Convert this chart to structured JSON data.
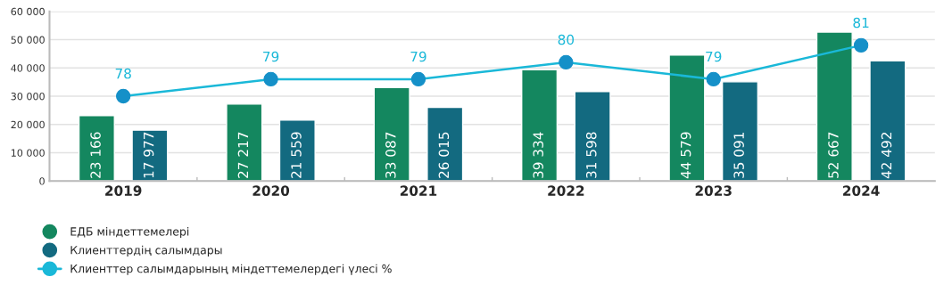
{
  "chart_data": {
    "type": "bar",
    "categories": [
      "2019",
      "2020",
      "2021",
      "2022",
      "2023",
      "2024"
    ],
    "series": [
      {
        "name": "ЕДБ міндеттемелері",
        "color": "#14875f",
        "values": [
          23166,
          27217,
          33087,
          39334,
          44579,
          52667
        ],
        "value_labels": [
          "23 166",
          "27 217",
          "33 087",
          "39 334",
          "44 579",
          "52 667"
        ]
      },
      {
        "name": "Клиенттердің салымдары",
        "color": "#136a80",
        "values": [
          17977,
          21559,
          26015,
          31598,
          35091,
          42492
        ],
        "value_labels": [
          "17 977",
          "21 559",
          "26 015",
          "31 598",
          "35 091",
          "42 492"
        ]
      },
      {
        "name": "Клиенттер салымдарының міндеттемелердегі үлесі %",
        "type": "line",
        "axis": "y2",
        "color": "#1ab8d8",
        "marker": "circle",
        "values": [
          78,
          79,
          79,
          80,
          79,
          81
        ],
        "value_labels": [
          "78",
          "79",
          "79",
          "80",
          "79",
          "81"
        ]
      }
    ],
    "ylim": [
      0,
      60000
    ],
    "yticks": [
      0,
      {
        "value": 10000,
        "label": "10 000"
      },
      {
        "value": 20000,
        "label": "20 000"
      },
      {
        "value": 30000,
        "label": "30 000"
      },
      {
        "value": 40000,
        "label": "40 000"
      },
      {
        "value": 50000,
        "label": "50 000"
      },
      {
        "value": 60000,
        "label": "60 000"
      }
    ],
    "y2lim": [
      73,
      83
    ],
    "grid": "y",
    "legend": "bottom left"
  }
}
